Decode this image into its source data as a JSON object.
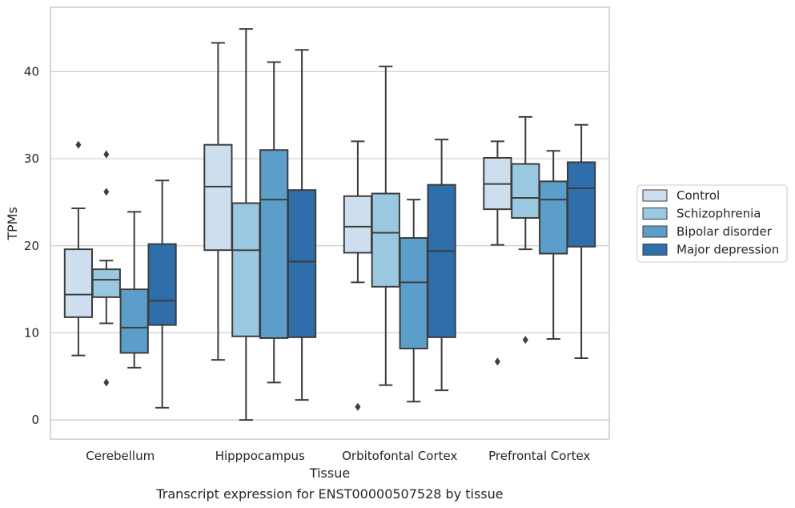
{
  "chart_data": {
    "type": "box",
    "title": "",
    "caption": "Transcript expression for ENST00000507528 by tissue",
    "xlabel": "Tissue",
    "ylabel": "TPMs",
    "ylim": [
      -2.2,
      47.4
    ],
    "yticks": [
      0,
      10,
      20,
      30,
      40
    ],
    "grid": "horizontal",
    "legend_position": "right",
    "categories": [
      "Cerebellum",
      "Hipppocampus",
      "Orbitofontal Cortex",
      "Prefrontal Cortex"
    ],
    "series": [
      {
        "name": "Control",
        "color": "#cddeef",
        "boxes": [
          {
            "whisker_low": 7.4,
            "q1": 11.8,
            "median": 14.4,
            "q3": 19.6,
            "whisker_high": 24.3,
            "outliers": [
              31.6
            ]
          },
          {
            "whisker_low": 6.9,
            "q1": 19.5,
            "median": 26.8,
            "q3": 31.6,
            "whisker_high": 43.3,
            "outliers": []
          },
          {
            "whisker_low": 15.8,
            "q1": 19.2,
            "median": 22.2,
            "q3": 25.7,
            "whisker_high": 32.0,
            "outliers": [
              1.5
            ]
          },
          {
            "whisker_low": 20.1,
            "q1": 24.2,
            "median": 27.1,
            "q3": 30.1,
            "whisker_high": 32.0,
            "outliers": [
              6.7
            ]
          }
        ]
      },
      {
        "name": "Schizophrenia",
        "color": "#9ac8e0",
        "boxes": [
          {
            "whisker_low": 11.1,
            "q1": 14.1,
            "median": 16.1,
            "q3": 17.3,
            "whisker_high": 18.3,
            "outliers": [
              4.3,
              26.2,
              30.5
            ]
          },
          {
            "whisker_low": 0.0,
            "q1": 9.6,
            "median": 19.5,
            "q3": 24.9,
            "whisker_high": 44.9,
            "outliers": []
          },
          {
            "whisker_low": 4.0,
            "q1": 15.3,
            "median": 21.5,
            "q3": 26.0,
            "whisker_high": 40.6,
            "outliers": []
          },
          {
            "whisker_low": 19.6,
            "q1": 23.2,
            "median": 25.5,
            "q3": 29.4,
            "whisker_high": 34.8,
            "outliers": [
              9.2
            ]
          }
        ]
      },
      {
        "name": "Bipolar disorder",
        "color": "#5b9ec9",
        "boxes": [
          {
            "whisker_low": 6.0,
            "q1": 7.7,
            "median": 10.6,
            "q3": 15.0,
            "whisker_high": 23.9,
            "outliers": []
          },
          {
            "whisker_low": 4.3,
            "q1": 9.4,
            "median": 25.3,
            "q3": 31.0,
            "whisker_high": 41.1,
            "outliers": []
          },
          {
            "whisker_low": 2.1,
            "q1": 8.2,
            "median": 15.8,
            "q3": 20.9,
            "whisker_high": 25.3,
            "outliers": []
          },
          {
            "whisker_low": 9.3,
            "q1": 19.1,
            "median": 25.3,
            "q3": 27.4,
            "whisker_high": 30.9,
            "outliers": []
          }
        ]
      },
      {
        "name": "Major depression",
        "color": "#2d6eab",
        "boxes": [
          {
            "whisker_low": 1.4,
            "q1": 10.9,
            "median": 13.7,
            "q3": 20.2,
            "whisker_high": 27.5,
            "outliers": []
          },
          {
            "whisker_low": 2.3,
            "q1": 9.5,
            "median": 18.2,
            "q3": 26.4,
            "whisker_high": 42.5,
            "outliers": []
          },
          {
            "whisker_low": 3.4,
            "q1": 9.5,
            "median": 19.4,
            "q3": 27.0,
            "whisker_high": 32.2,
            "outliers": []
          },
          {
            "whisker_low": 7.1,
            "q1": 19.9,
            "median": 26.6,
            "q3": 29.6,
            "whisker_high": 33.9,
            "outliers": []
          }
        ]
      }
    ]
  }
}
